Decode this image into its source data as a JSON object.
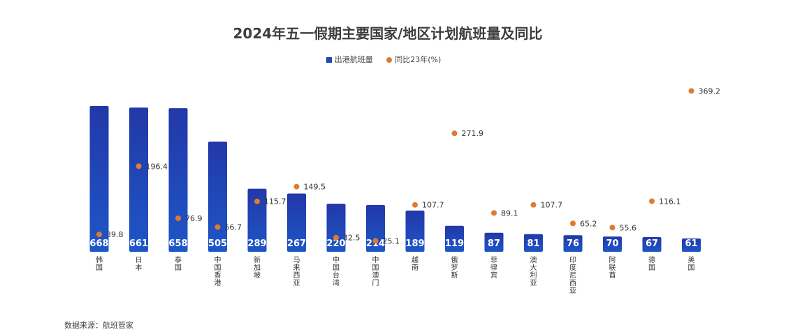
{
  "chart_data": {
    "type": "bar",
    "title": "2024年五一假期主要国家/地区计划航班量及同比",
    "categories": [
      "韩国",
      "日本",
      "泰国",
      "中国香港",
      "新加坡",
      "马来西亚",
      "中国台湾",
      "中国澳门",
      "越南",
      "俄罗斯",
      "菲律宾",
      "澳大利亚",
      "印度尼西亚",
      "阿联酋",
      "德国",
      "美国"
    ],
    "series": [
      {
        "name": "出港航班量",
        "type": "bar",
        "color": "#1f47b5",
        "values": [
          668,
          661,
          658,
          505,
          289,
          267,
          220,
          214,
          189,
          119,
          87,
          81,
          76,
          70,
          67,
          61
        ]
      },
      {
        "name": "同比23年(%)",
        "type": "scatter",
        "color": "#e07a30",
        "values": [
          39.8,
          196.4,
          76.9,
          56.7,
          115.7,
          149.5,
          32.5,
          25.1,
          107.7,
          271.9,
          89.1,
          107.7,
          65.2,
          55.6,
          116.1,
          369.2
        ]
      }
    ],
    "ylim_bar": [
      0,
      700
    ],
    "ylim_yoy": [
      0,
      400
    ],
    "grid": false,
    "legend_position": "top-center"
  },
  "colors": {
    "bar": "#1f47b5",
    "bar_top": "#2240b0",
    "dot": "#e07a30",
    "highlight": "#f5f23a"
  },
  "footer": {
    "source": "数据来源：航班管家"
  }
}
